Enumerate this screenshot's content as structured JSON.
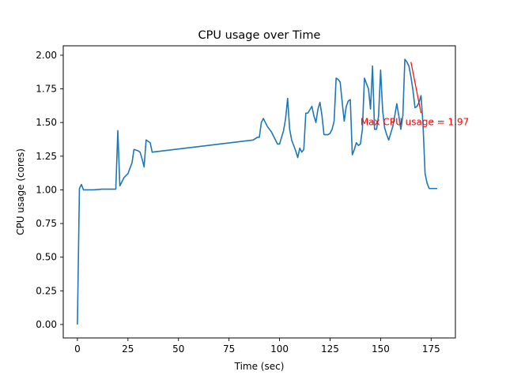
{
  "chart_data": {
    "type": "line",
    "title": "CPU usage over Time",
    "xlabel": "Time (sec)",
    "ylabel": "CPU usage (cores)",
    "xlim": [
      -7,
      187
    ],
    "ylim": [
      -0.1,
      2.07
    ],
    "xticks": [
      0,
      25,
      50,
      75,
      100,
      125,
      150,
      175
    ],
    "xtick_labels": [
      "0",
      "25",
      "50",
      "75",
      "100",
      "125",
      "150",
      "175"
    ],
    "yticks": [
      0,
      0.25,
      0.5,
      0.75,
      1.0,
      1.25,
      1.5,
      1.75,
      2.0
    ],
    "ytick_labels": [
      "0.00",
      "0.25",
      "0.50",
      "0.75",
      "1.00",
      "1.25",
      "1.50",
      "1.75",
      "2.00"
    ],
    "grid": false,
    "series": [
      {
        "color": "#1f77b4",
        "x": [
          0,
          1,
          2,
          3,
          5,
          8,
          12,
          15,
          17,
          19,
          20,
          21,
          23,
          25,
          27,
          28,
          30,
          31,
          32,
          33,
          34,
          36,
          37,
          87,
          89,
          90,
          91,
          92,
          94,
          96,
          98,
          99,
          100,
          102,
          103,
          104,
          105,
          106,
          108,
          109,
          110,
          111,
          112,
          113,
          114,
          116,
          117,
          118,
          119,
          120,
          121,
          122,
          123,
          124,
          125,
          126,
          127,
          128,
          129,
          130,
          131,
          132,
          133,
          134,
          135,
          136,
          137,
          138,
          139,
          140,
          141,
          142,
          143,
          144,
          145,
          146,
          147,
          148,
          149,
          150,
          151,
          152,
          153,
          154,
          155,
          156,
          157,
          158,
          159,
          160,
          161,
          162,
          163,
          164,
          165,
          166,
          167,
          168,
          169,
          170,
          171,
          172,
          173,
          174,
          175,
          176,
          177,
          178
        ],
        "y": [
          0.0,
          1.01,
          1.04,
          1.0,
          1.0,
          1.0,
          1.005,
          1.005,
          1.005,
          1.005,
          1.44,
          1.03,
          1.09,
          1.12,
          1.2,
          1.3,
          1.29,
          1.28,
          1.23,
          1.17,
          1.37,
          1.35,
          1.28,
          1.37,
          1.39,
          1.39,
          1.5,
          1.53,
          1.47,
          1.43,
          1.37,
          1.34,
          1.34,
          1.44,
          1.53,
          1.68,
          1.45,
          1.37,
          1.29,
          1.24,
          1.31,
          1.28,
          1.3,
          1.57,
          1.57,
          1.62,
          1.55,
          1.5,
          1.6,
          1.65,
          1.55,
          1.41,
          1.41,
          1.41,
          1.42,
          1.45,
          1.51,
          1.83,
          1.82,
          1.8,
          1.65,
          1.51,
          1.62,
          1.66,
          1.67,
          1.26,
          1.3,
          1.35,
          1.33,
          1.34,
          1.45,
          1.83,
          1.79,
          1.75,
          1.6,
          1.92,
          1.45,
          1.45,
          1.55,
          1.89,
          1.59,
          1.46,
          1.41,
          1.37,
          1.42,
          1.47,
          1.55,
          1.64,
          1.55,
          1.45,
          1.55,
          1.97,
          1.95,
          1.92,
          1.84,
          1.74,
          1.61,
          1.62,
          1.65,
          1.7,
          1.48,
          1.12,
          1.05,
          1.01,
          1.01,
          1.01,
          1.01,
          1.01
        ]
      }
    ],
    "annotation": {
      "text": "Max CPU usage = 1.97",
      "color": "#ff0000",
      "xy": [
        165,
        1.95
      ],
      "xytext": [
        140,
        1.47
      ]
    }
  }
}
